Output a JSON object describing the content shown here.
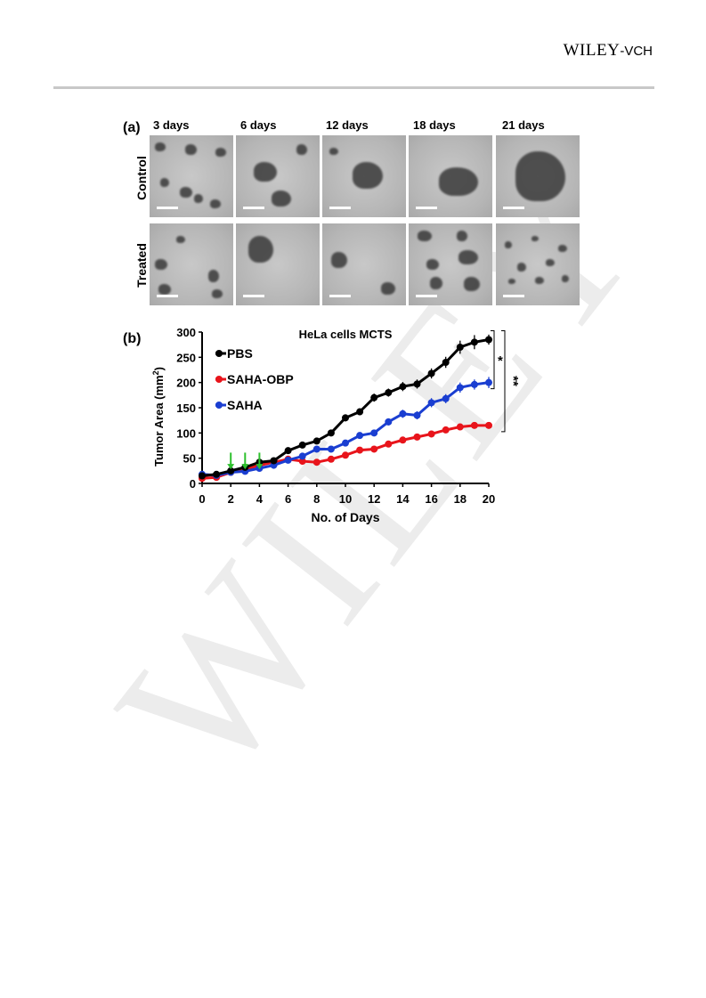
{
  "header": {
    "publisher": "WILEY",
    "publisher_suffix": "-VCH"
  },
  "watermark": "WILEY",
  "panel_a": {
    "label": "(a)",
    "columns": [
      "3 days",
      "6 days",
      "12 days",
      "18 days",
      "21 days"
    ],
    "rows": [
      "Control",
      "Treated"
    ]
  },
  "panel_b": {
    "label": "(b)"
  },
  "chart_data": {
    "type": "line",
    "title": "HeLa cells  MCTS",
    "xlabel": "No. of Days",
    "ylabel": "Tumor Area (mm",
    "ylabel_sup": "2",
    "ylabel_end": ")",
    "xlim": [
      0,
      20
    ],
    "ylim": [
      0,
      300
    ],
    "xticks": [
      0,
      2,
      4,
      6,
      8,
      10,
      12,
      14,
      16,
      18,
      20
    ],
    "yticks": [
      0,
      50,
      100,
      150,
      200,
      250,
      300
    ],
    "grid": false,
    "legend_position": "top-left",
    "x": [
      0,
      1,
      2,
      3,
      4,
      5,
      6,
      7,
      8,
      9,
      10,
      11,
      12,
      13,
      14,
      15,
      16,
      17,
      18,
      19,
      20
    ],
    "series": [
      {
        "name": "PBS",
        "color": "#000000",
        "values": [
          15,
          18,
          25,
          32,
          42,
          45,
          65,
          76,
          84,
          100,
          130,
          142,
          170,
          180,
          192,
          197,
          218,
          240,
          270,
          280,
          285
        ],
        "error": [
          3,
          3,
          3,
          3,
          4,
          4,
          5,
          5,
          5,
          6,
          7,
          7,
          8,
          8,
          9,
          9,
          10,
          11,
          13,
          14,
          10
        ]
      },
      {
        "name": "SAHA-OBP",
        "color": "#e8141b",
        "values": [
          10,
          12,
          22,
          28,
          36,
          42,
          48,
          44,
          42,
          48,
          56,
          66,
          68,
          78,
          86,
          92,
          98,
          106,
          112,
          115,
          115
        ],
        "error": [
          2,
          2,
          3,
          3,
          3,
          3,
          4,
          4,
          3,
          4,
          4,
          4,
          4,
          5,
          5,
          5,
          5,
          6,
          6,
          6,
          6
        ]
      },
      {
        "name": "SAHA",
        "color": "#1a3ed1",
        "values": [
          18,
          16,
          22,
          24,
          30,
          36,
          46,
          54,
          68,
          68,
          80,
          95,
          100,
          122,
          138,
          135,
          160,
          168,
          190,
          196,
          200
        ],
        "error": [
          3,
          3,
          3,
          3,
          3,
          4,
          4,
          4,
          5,
          5,
          5,
          6,
          6,
          7,
          8,
          8,
          9,
          9,
          10,
          10,
          11
        ]
      }
    ],
    "annotations": {
      "treatment_arrows_days": [
        2,
        3,
        4
      ],
      "arrow_color": "#2ec02e",
      "significance": [
        {
          "text": "*",
          "from_series": "PBS",
          "to_series": "SAHA"
        },
        {
          "text": "**",
          "from_series": "PBS",
          "to_series": "SAHA-OBP"
        }
      ]
    }
  }
}
